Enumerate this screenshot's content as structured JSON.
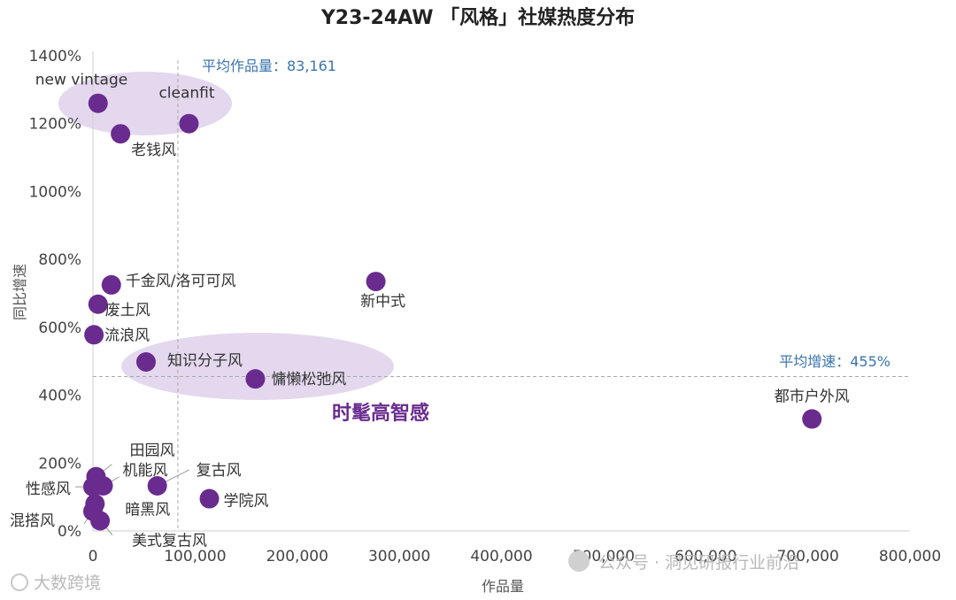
{
  "chart_data": {
    "type": "scatter",
    "title": "Y23-24AW 「风格」社媒热度分布",
    "xlabel": "作品量",
    "ylabel": "同比增速",
    "xlim": [
      0,
      800000
    ],
    "ylim": [
      0,
      1400
    ],
    "x_ticks": [
      "0",
      "100,000",
      "200,000",
      "300,000",
      "400,000",
      "500,000",
      "600,000",
      "700,000",
      "800,000"
    ],
    "y_ticks": [
      "0%",
      "200%",
      "400%",
      "600%",
      "800%",
      "1000%",
      "1200%",
      "1400%"
    ],
    "grid": false,
    "marker_color": "#6a2b8f",
    "cluster_color": "#e4d8ee",
    "reference_color": "#3a74b0",
    "ref_lines": [
      {
        "axis": "x",
        "value": 83161,
        "label": "平均作品量：83,161"
      },
      {
        "axis": "y",
        "value": 455,
        "label": "平均增速：455%"
      }
    ],
    "cluster_label": "时髦高智感",
    "points": [
      {
        "label": "new vintage",
        "x": 5000,
        "y": 1260
      },
      {
        "label": "cleanfit",
        "x": 94000,
        "y": 1200
      },
      {
        "label": "老钱风",
        "x": 27000,
        "y": 1170
      },
      {
        "label": "千金风/洛可可风",
        "x": 18000,
        "y": 725
      },
      {
        "label": "新中式",
        "x": 277000,
        "y": 735
      },
      {
        "label": "废土风",
        "x": 5000,
        "y": 668
      },
      {
        "label": "流浪风",
        "x": 1000,
        "y": 578
      },
      {
        "label": "知识分子风",
        "x": 52000,
        "y": 498
      },
      {
        "label": "慵懒松弛风",
        "x": 159000,
        "y": 448
      },
      {
        "label": "都市户外风",
        "x": 704000,
        "y": 330
      },
      {
        "label": "田园风",
        "x": 3000,
        "y": 160
      },
      {
        "label": "机能风",
        "x": 10000,
        "y": 133
      },
      {
        "label": "性感风",
        "x": 0,
        "y": 130
      },
      {
        "label": "复古风",
        "x": 63000,
        "y": 133
      },
      {
        "label": "学院风",
        "x": 114000,
        "y": 95
      },
      {
        "label": "暗黑风",
        "x": 2000,
        "y": 80
      },
      {
        "label": "混搭风",
        "x": 0,
        "y": 58
      },
      {
        "label": "美式复古风",
        "x": 7000,
        "y": 30
      }
    ]
  },
  "watermarks": {
    "left": "大数跨境",
    "right": "公众号 · 洞见研报行业前沿"
  }
}
